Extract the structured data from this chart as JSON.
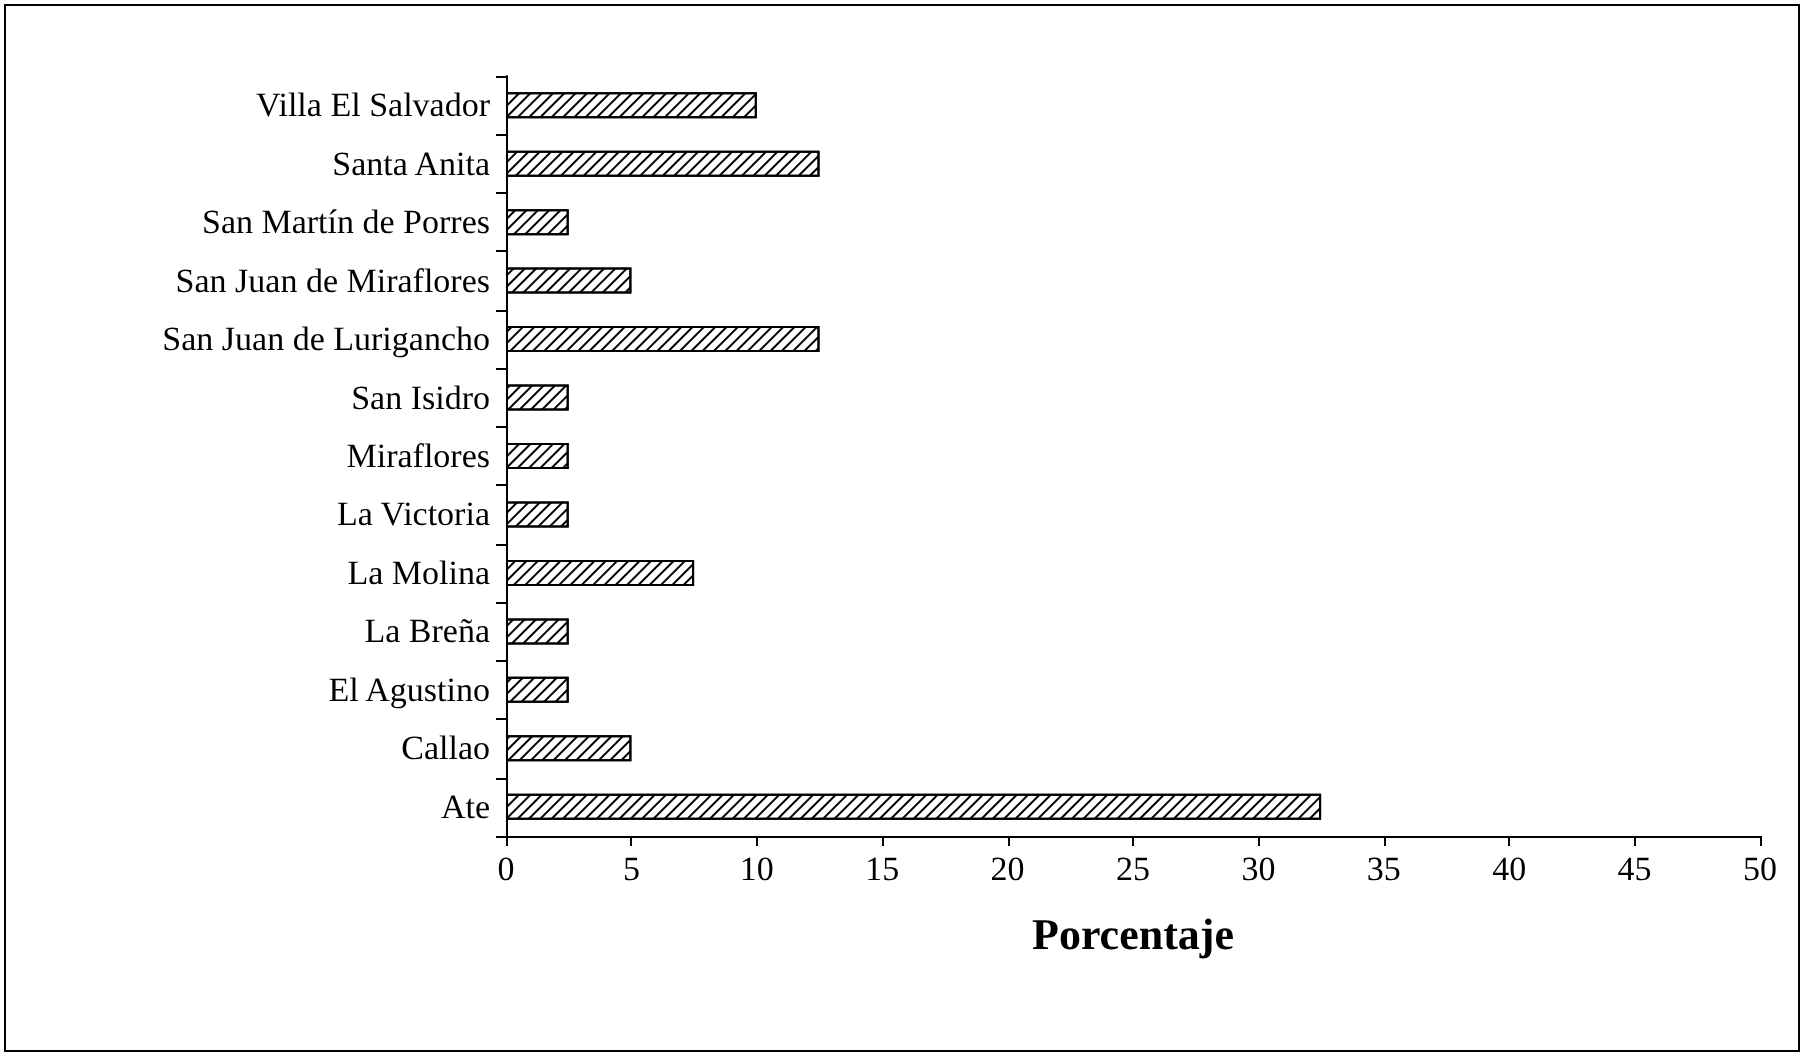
{
  "chart_data": {
    "type": "bar",
    "orientation": "horizontal",
    "xlabel": "Porcentaje",
    "categories": [
      "Villa El Salvador",
      "Santa Anita",
      "San Martín de Porres",
      "San Juan de Miraflores",
      "San Juan de Lurigancho",
      "San Isidro",
      "Miraflores",
      "La Victoria",
      "La Molina",
      "La Breña",
      "El Agustino",
      "Callao",
      "Ate"
    ],
    "values": [
      10,
      12.5,
      2.5,
      5,
      12.5,
      2.5,
      2.5,
      2.5,
      7.5,
      2.5,
      2.5,
      5,
      32.5
    ],
    "color": "#000000",
    "xlim": [
      0,
      50
    ],
    "xticks": [
      0,
      5,
      10,
      15,
      20,
      25,
      30,
      35,
      40,
      45,
      50
    ],
    "grid": false
  }
}
